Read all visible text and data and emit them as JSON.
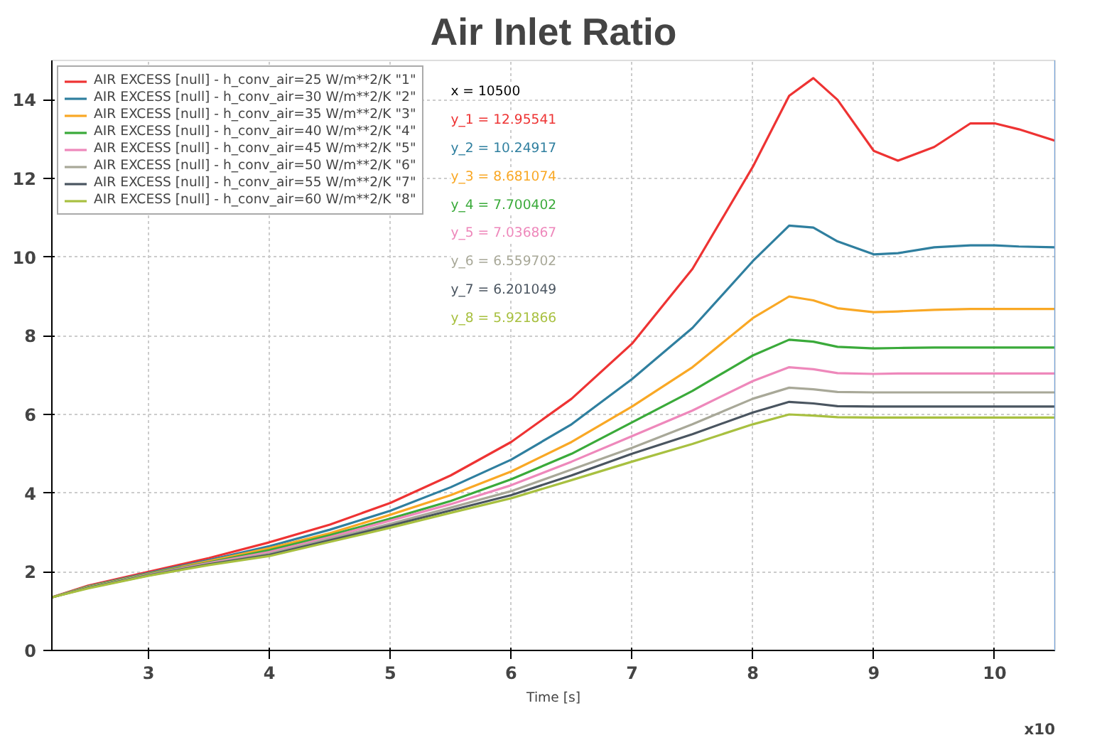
{
  "chart_data": {
    "type": "line",
    "title": "Air Inlet Ratio",
    "xlabel": "Time [s]",
    "x": [
      2.2,
      2.5,
      3,
      3.5,
      4,
      4.5,
      5,
      5.5,
      6,
      6.5,
      7,
      7.5,
      8,
      8.3,
      8.5,
      8.7,
      9,
      9.2,
      9.5,
      9.8,
      10,
      10.2,
      10.5
    ],
    "series": [
      {
        "name": "AIR EXCESS [null] - h_conv_air=25 W/m**2/K \"1\"",
        "color": "#ee3333",
        "values": [
          1.35,
          1.65,
          2.0,
          2.35,
          2.75,
          3.2,
          3.75,
          4.45,
          5.3,
          6.4,
          7.8,
          9.7,
          12.3,
          14.1,
          14.55,
          14.0,
          12.7,
          12.45,
          12.8,
          13.4,
          13.4,
          13.25,
          12.96
        ]
      },
      {
        "name": "AIR EXCESS [null] - h_conv_air=30 W/m**2/K \"2\"",
        "color": "#2f7f9f",
        "values": [
          1.35,
          1.63,
          1.97,
          2.3,
          2.65,
          3.07,
          3.55,
          4.15,
          4.85,
          5.75,
          6.9,
          8.2,
          9.9,
          10.8,
          10.75,
          10.4,
          10.07,
          10.1,
          10.25,
          10.3,
          10.3,
          10.27,
          10.25
        ]
      },
      {
        "name": "AIR EXCESS [null] - h_conv_air=35 W/m**2/K \"3\"",
        "color": "#f9a825",
        "values": [
          1.35,
          1.62,
          1.95,
          2.27,
          2.6,
          2.98,
          3.45,
          3.95,
          4.55,
          5.3,
          6.2,
          7.2,
          8.45,
          9.0,
          8.9,
          8.7,
          8.6,
          8.62,
          8.66,
          8.68,
          8.68,
          8.68,
          8.68
        ]
      },
      {
        "name": "AIR EXCESS [null] - h_conv_air=40 W/m**2/K \"4\"",
        "color": "#3aaa3a",
        "values": [
          1.35,
          1.61,
          1.94,
          2.24,
          2.55,
          2.93,
          3.35,
          3.8,
          4.35,
          5.0,
          5.8,
          6.6,
          7.5,
          7.9,
          7.85,
          7.72,
          7.68,
          7.69,
          7.7,
          7.7,
          7.7,
          7.7,
          7.7
        ]
      },
      {
        "name": "AIR EXCESS [null] - h_conv_air=45 W/m**2/K \"5\"",
        "color": "#ee88bb",
        "values": [
          1.35,
          1.6,
          1.93,
          2.22,
          2.5,
          2.88,
          3.3,
          3.72,
          4.2,
          4.8,
          5.45,
          6.1,
          6.85,
          7.2,
          7.15,
          7.05,
          7.03,
          7.04,
          7.04,
          7.04,
          7.04,
          7.04,
          7.04
        ]
      },
      {
        "name": "AIR EXCESS [null] - h_conv_air=50 W/m**2/K \"6\"",
        "color": "#a8a898",
        "values": [
          1.35,
          1.6,
          1.92,
          2.2,
          2.46,
          2.84,
          3.22,
          3.63,
          4.05,
          4.6,
          5.15,
          5.75,
          6.4,
          6.68,
          6.64,
          6.57,
          6.56,
          6.56,
          6.56,
          6.56,
          6.56,
          6.56,
          6.56
        ]
      },
      {
        "name": "AIR EXCESS [null] - h_conv_air=55 W/m**2/K \"7\"",
        "color": "#4a5560",
        "values": [
          1.35,
          1.59,
          1.91,
          2.19,
          2.43,
          2.8,
          3.17,
          3.56,
          3.95,
          4.45,
          5.0,
          5.5,
          6.05,
          6.32,
          6.28,
          6.21,
          6.2,
          6.2,
          6.2,
          6.2,
          6.2,
          6.2,
          6.2
        ]
      },
      {
        "name": "AIR EXCESS [null] - h_conv_air=60 W/m**2/K \"8\"",
        "color": "#a8c040",
        "values": [
          1.35,
          1.58,
          1.9,
          2.17,
          2.4,
          2.76,
          3.12,
          3.5,
          3.87,
          4.33,
          4.8,
          5.25,
          5.75,
          6.0,
          5.97,
          5.93,
          5.92,
          5.92,
          5.92,
          5.92,
          5.92,
          5.92,
          5.92
        ]
      }
    ],
    "xlim": [
      2.2,
      10.5
    ],
    "xticks": [
      3,
      4,
      5,
      6,
      7,
      8,
      9,
      10
    ],
    "ylim": [
      0,
      15
    ],
    "yticks": [
      0,
      2,
      4,
      6,
      8,
      10,
      12,
      14
    ],
    "ref_lines": [
      {
        "axis": "x",
        "value": 10.5,
        "color": "#7aa6d8"
      }
    ],
    "annotations": [
      "x    = 10500",
      "y_1 = 12.95541",
      "y_2 = 10.24917",
      "y_3 = 8.681074",
      "y_4 = 7.700402",
      "y_5 = 7.036867",
      "y_6 = 6.559702",
      "y_7 = 6.201049",
      "y_8 = 5.921866",
      "x10"
    ],
    "grid": true,
    "legend": "top left",
    "line_style": "solid",
    "marker": "none"
  }
}
